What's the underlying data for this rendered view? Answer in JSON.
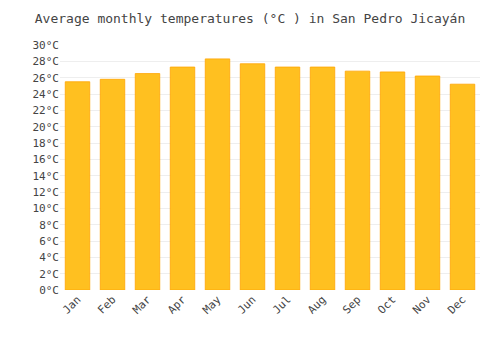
{
  "chart_data": {
    "type": "bar",
    "title": "Average monthly temperatures (°C ) in San Pedro Jicayán",
    "categories": [
      "Jan",
      "Feb",
      "Mar",
      "Apr",
      "May",
      "Jun",
      "Jul",
      "Aug",
      "Sep",
      "Oct",
      "Nov",
      "Dec"
    ],
    "values": [
      25.5,
      25.8,
      26.5,
      27.3,
      28.3,
      27.7,
      27.3,
      27.3,
      26.8,
      26.7,
      26.2,
      25.2
    ],
    "color": "#FFC020",
    "ylim": [
      0,
      30
    ],
    "yticks": [
      {
        "value": 0,
        "label": "0°C"
      },
      {
        "value": 2,
        "label": "2°C"
      },
      {
        "value": 4,
        "label": "4°C"
      },
      {
        "value": 6,
        "label": "6°C"
      },
      {
        "value": 8,
        "label": "8°C"
      },
      {
        "value": 10,
        "label": "10°C"
      },
      {
        "value": 12,
        "label": "12°C"
      },
      {
        "value": 14,
        "label": "14°C"
      },
      {
        "value": 16,
        "label": "16°C"
      },
      {
        "value": 18,
        "label": "18°C"
      },
      {
        "value": 20,
        "label": "20°C"
      },
      {
        "value": 22,
        "label": "22°C"
      },
      {
        "value": 24,
        "label": "24°C"
      },
      {
        "value": 26,
        "label": "26°C"
      },
      {
        "value": 28,
        "label": "28°C"
      },
      {
        "value": 30,
        "label": "30°C"
      }
    ],
    "grid": true
  }
}
